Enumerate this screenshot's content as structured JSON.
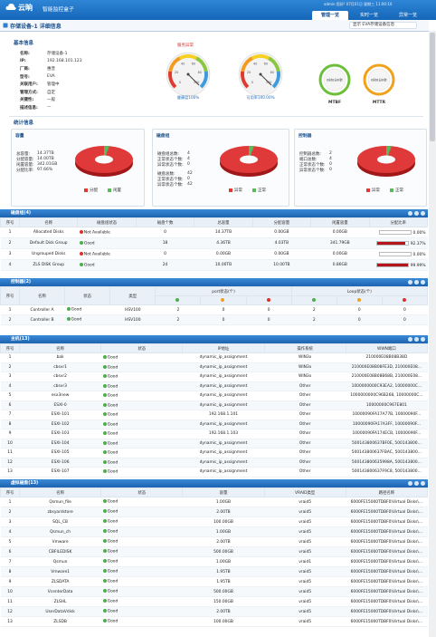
{
  "header": {
    "logo": "云晌",
    "subtitle": "智能监控盒子",
    "user_info": "admin 您好! 07月01日 星期三 11:00:10",
    "tabs": [
      "管理一览",
      "实时一览",
      "异常一览"
    ]
  },
  "page_title": "存储设备-1 详细信息",
  "selector": "显示 EVA存储设备信息",
  "basic_info": {
    "title": "基本信息",
    "fields": [
      {
        "label": "名称:",
        "value": "存储设备-1"
      },
      {
        "label": "IP:",
        "value": "192.168.101.123"
      },
      {
        "label": "厂商:",
        "value": "惠普"
      },
      {
        "label": "型号:",
        "value": "EVA"
      },
      {
        "label": "关联用户:",
        "value": "管理中"
      },
      {
        "label": "管理方式:",
        "value": "自定"
      },
      {
        "label": "关键性:",
        "value": "一般"
      },
      {
        "label": "描述信息:",
        "value": "—"
      }
    ],
    "gauge_title": "服务异常",
    "gauge_ticks": [
      0,
      20,
      40,
      60,
      80,
      100
    ],
    "gauges": [
      {
        "label": "健康度100%",
        "value": 100
      },
      {
        "label": "可用率100.00%",
        "value": 100
      }
    ],
    "rings": [
      {
        "label": "MTBF",
        "value": "0时0分0秒"
      },
      {
        "label": "MTTR",
        "value": "0时0分0秒"
      }
    ]
  },
  "stats": {
    "title": "统计信息",
    "panels": [
      {
        "title": "容量",
        "lines": [
          {
            "label": "总容量:",
            "value": "14.37TB"
          },
          {
            "label": "分配容量:",
            "value": "14.00TB"
          },
          {
            "label": "闲置容量:",
            "value": "342.01GB"
          },
          {
            "label": "分配比率:",
            "value": "97.66%"
          }
        ],
        "legend": [
          "分配",
          "闲置"
        ]
      },
      {
        "title": "磁盘组",
        "lines": [
          {
            "label": "磁盘组总数:",
            "value": "4"
          },
          {
            "label": "正常状态个数:",
            "value": "4"
          },
          {
            "label": "异常状态个数:",
            "value": "0"
          },
          {
            "label": "磁盘总数:",
            "value": "42"
          },
          {
            "label": "正常状态个数:",
            "value": "0"
          },
          {
            "label": "异常状态个数:",
            "value": "42"
          }
        ],
        "legend": [
          "异常",
          "正常"
        ]
      },
      {
        "title": "控制器",
        "lines": [
          {
            "label": "控制器总数:",
            "value": "2"
          },
          {
            "label": "端口总数:",
            "value": "4"
          },
          {
            "label": "正常状态个数:",
            "value": "0"
          },
          {
            "label": "异常状态个数:",
            "value": "0"
          }
        ],
        "legend": [
          "异常",
          "正常"
        ]
      }
    ]
  },
  "tables": [
    {
      "title": "磁盘组(4)",
      "columns": [
        "序号",
        "名称",
        "磁盘组状态",
        "磁盘个数",
        "总容量",
        "分配容量",
        "闲置容量",
        "分配比率"
      ],
      "rows": [
        [
          "1",
          "Allocated Disks",
          {
            "status": "Not Available",
            "ok": false
          },
          "0",
          "14.37TB",
          "0.00GB",
          "0.00GB",
          {
            "ratio": "0.00%"
          }
        ],
        [
          "2",
          "Default Disk Group",
          {
            "status": "Good",
            "ok": true
          },
          "18",
          "4.36TB",
          "4.03TB",
          "341.79GB",
          {
            "ratio": "92.37%"
          }
        ],
        [
          "3",
          "Ungrouped Disks",
          {
            "status": "Not Available",
            "ok": false
          },
          "0",
          "0.00GB",
          "0.00GB",
          "0.00GB",
          {
            "ratio": "0.00%"
          }
        ],
        [
          "4",
          "ZLS DISK Group",
          {
            "status": "Good",
            "ok": true
          },
          "24",
          "10.00TB",
          "10.00TB",
          "0.86GB",
          {
            "ratio": "99.99%"
          }
        ]
      ]
    },
    {
      "title": "控制器(2)",
      "columns": [
        "序号",
        "名称",
        "状态",
        "类型"
      ],
      "column_groups": [
        "port状态(个)",
        "Loop状态(个)"
      ],
      "rows": [
        [
          "1",
          "Controller A",
          {
            "status": "Good",
            "ok": true
          },
          "HSV100",
          "2",
          "0",
          "0",
          "2",
          "0",
          "0"
        ],
        [
          "2",
          "Controller B",
          {
            "status": "Good",
            "ok": true
          },
          "HSV100",
          "2",
          "0",
          "0",
          "2",
          "0",
          "0"
        ]
      ]
    },
    {
      "title": "主机(13)",
      "columns": [
        "序号",
        "名称",
        "状态",
        "IP地址",
        "操作系统",
        "WWN端口"
      ],
      "rows": [
        [
          "1",
          "bak",
          {
            "status": "Good",
            "ok": true
          },
          "dynamic_ip_assignment",
          "WIN3x",
          "210000E08B08B38D"
        ],
        [
          "2",
          "cbsvr1",
          {
            "status": "Good",
            "ok": true
          },
          "dynamic_ip_assignment",
          "WIN3x",
          "210000E08B08FE3D, 210000E08..."
        ],
        [
          "3",
          "cbsvr2",
          {
            "status": "Good",
            "ok": true
          },
          "dynamic_ip_assignment",
          "WIN3x",
          "210000E08B08B68B, 210000E08..."
        ],
        [
          "4",
          "cbsvr3",
          {
            "status": "Good",
            "ok": true
          },
          "dynamic_ip_assignment",
          "Other",
          "1000000000C93EA2, 10000000C..."
        ],
        [
          "5",
          "esx3new",
          {
            "status": "Good",
            "ok": true
          },
          "dynamic_ip_assignment",
          "Other",
          "1000000000C96B268, 10000000C..."
        ],
        [
          "6",
          "ESXI-0",
          {
            "status": "Good",
            "ok": true
          },
          "dynamic_ip_assignment",
          "Other",
          "10000000C967E801"
        ],
        [
          "7",
          "ESXI-101",
          {
            "status": "Good",
            "ok": true
          },
          "192.168.1.101",
          "Other",
          "10000090FA17A77B, 10000090F..."
        ],
        [
          "8",
          "ESXI-102",
          {
            "status": "Good",
            "ok": true
          },
          "dynamic_ip_assignment",
          "Other",
          "10000090FA17A3FF, 10000090F..."
        ],
        [
          "9",
          "ESXI-103",
          {
            "status": "Good",
            "ok": true
          },
          "192.168.1.103",
          "Other",
          "10000090FA174ECB, 10000090F..."
        ],
        [
          "10",
          "ESXI-104",
          {
            "status": "Good",
            "ok": true
          },
          "dynamic_ip_assignment",
          "Other",
          "500143800637BF0E, 500143800..."
        ],
        [
          "11",
          "ESXI-105",
          {
            "status": "Good",
            "ok": true
          },
          "dynamic_ip_assignment",
          "Other",
          "500143800637FBAC, 500143800..."
        ],
        [
          "12",
          "ESXI-106",
          {
            "status": "Good",
            "ok": true
          },
          "dynamic_ip_assignment",
          "Other",
          "500143800635998A, 500143800..."
        ],
        [
          "13",
          "ESXI-107",
          {
            "status": "Good",
            "ok": true
          },
          "dynamic_ip_assignment",
          "Other",
          "500143800637F9C8, 500143800..."
        ]
      ]
    },
    {
      "title": "虚拟磁盘(13)",
      "columns": [
        "序号",
        "名称",
        "状态",
        "容量",
        "VRAID类型",
        "路径名称"
      ],
      "rows": [
        [
          "1",
          "Qsmun_file",
          {
            "status": "Good",
            "ok": true
          },
          "1.00GB",
          "vraid5",
          "6000FE15000TDBF0\\Virtual Disks\\..."
        ],
        [
          "2",
          "zbsyardstore",
          {
            "status": "Good",
            "ok": true
          },
          "2.00TB",
          "vraid5",
          "6000FE15000TDBF0\\Virtual Disks\\..."
        ],
        [
          "3",
          "SQL_CB",
          {
            "status": "Good",
            "ok": true
          },
          "100.00GB",
          "vraid5",
          "6000FE15000TDBF0\\Virtual Disks\\..."
        ],
        [
          "4",
          "Qsmun_ch",
          {
            "status": "Good",
            "ok": true
          },
          "1.00GB",
          "vraid5",
          "6000FE15000TDBF0\\Virtual Disks\\..."
        ],
        [
          "5",
          "Vmware",
          {
            "status": "Good",
            "ok": true
          },
          "2.00TB",
          "vraid5",
          "6000FE15000TDBF0\\Virtual Disks\\..."
        ],
        [
          "6",
          "CBFILEDISK",
          {
            "status": "Good",
            "ok": true
          },
          "500.00GB",
          "vraid5",
          "6000FE15000TDBF0\\Virtual Disks\\..."
        ],
        [
          "7",
          "Qsmun",
          {
            "status": "Good",
            "ok": true
          },
          "1.00GB",
          "vraid1",
          "6000FE15000TDBF0\\Virtual Disks\\..."
        ],
        [
          "8",
          "Vmware1",
          {
            "status": "Good",
            "ok": true
          },
          "1.95TB",
          "vraid5",
          "6000FE15000TDBF0\\Virtual Disks\\..."
        ],
        [
          "9",
          "ZLSDATA",
          {
            "status": "Good",
            "ok": true
          },
          "1.95TB",
          "vraid5",
          "6000FE15000TDBF0\\Virtual Disks\\..."
        ],
        [
          "10",
          "VcenterData",
          {
            "status": "Good",
            "ok": true
          },
          "500.00GB",
          "vraid5",
          "6000FE15000TDBF0\\Virtual Disks\\..."
        ],
        [
          "11",
          "ZLSHL",
          {
            "status": "Good",
            "ok": true
          },
          "150.00GB",
          "vraid5",
          "6000FE15000TDBF0\\Virtual Disks\\..."
        ],
        [
          "12",
          "UserDataVdisk",
          {
            "status": "Good",
            "ok": true
          },
          "2.00TB",
          "vraid5",
          "6000FE15000TDBF0\\Virtual Disks\\..."
        ],
        [
          "13",
          "ZLSDB",
          {
            "status": "Good",
            "ok": true
          },
          "100.00GB",
          "vraid5",
          "6000FE15000TDBF0\\Virtual Disks\\..."
        ]
      ]
    }
  ]
}
